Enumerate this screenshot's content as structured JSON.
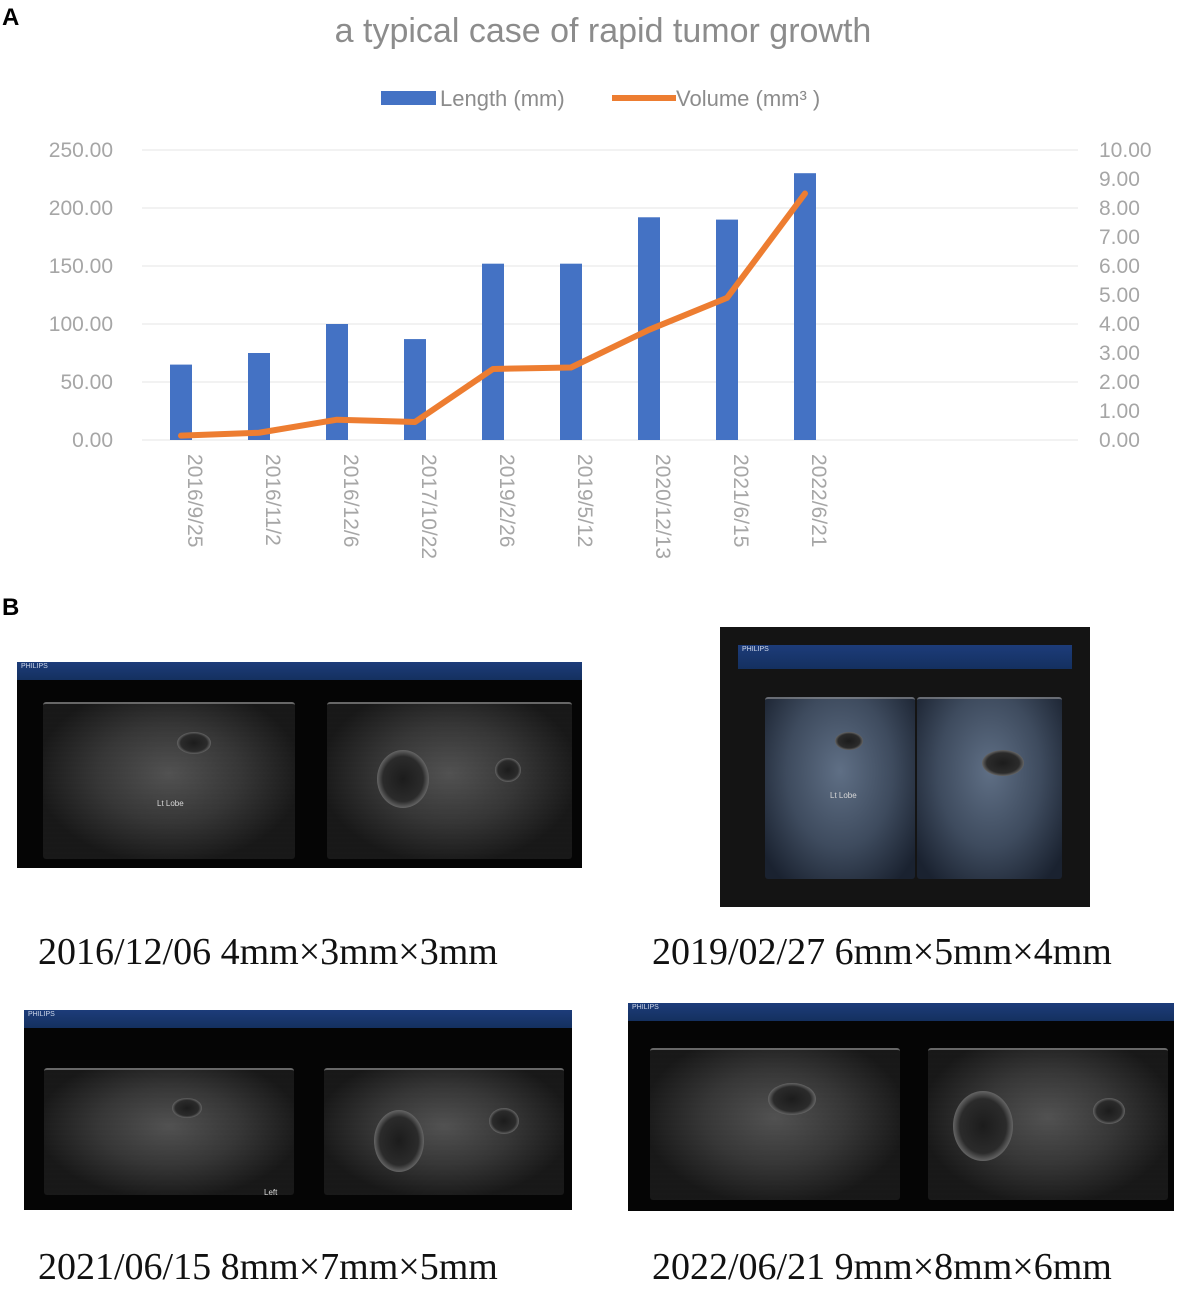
{
  "panels": {
    "a": "A",
    "b": "B"
  },
  "chart_data": {
    "type": "bar",
    "title": "a typical case of rapid tumor growth",
    "categories": [
      "2016/9/25",
      "2016/11/2",
      "2016/12/6",
      "2017/10/22",
      "2019/2/26",
      "2019/5/12",
      "2020/12/13",
      "2021/6/15",
      "2022/6/21"
    ],
    "series": [
      {
        "name": "Length (mm)",
        "type": "bar",
        "axis": "left",
        "color": "#4472c4",
        "values": [
          65,
          75,
          100,
          87,
          152,
          152,
          192,
          190,
          230
        ]
      },
      {
        "name": "Volume (mm³ )",
        "type": "line",
        "axis": "right",
        "color": "#ed7d31",
        "values": [
          0.15,
          0.25,
          0.7,
          0.62,
          2.45,
          2.5,
          3.8,
          4.9,
          8.5
        ]
      }
    ],
    "y_left": {
      "min": 0,
      "max": 250,
      "ticks": [
        "0.00",
        "50.00",
        "100.00",
        "150.00",
        "200.00",
        "250.00"
      ]
    },
    "y_right": {
      "min": 0,
      "max": 10,
      "ticks": [
        "0.00",
        "1.00",
        "2.00",
        "3.00",
        "4.00",
        "5.00",
        "6.00",
        "7.00",
        "8.00",
        "9.00",
        "10.00"
      ]
    },
    "grid": true,
    "legend_position": "top"
  },
  "ultrasounds": [
    {
      "id": "us1",
      "caption": "2016/12/06 4mm×3mm×3mm",
      "header": "PHILIPS",
      "label": "Lt Lobe"
    },
    {
      "id": "us2",
      "caption": "2019/02/27 6mm×5mm×4mm",
      "header": "PHILIPS",
      "label": "Lt Lobe"
    },
    {
      "id": "us3",
      "caption": "2021/06/15 8mm×7mm×5mm",
      "header": "PHILIPS",
      "label": "Left"
    },
    {
      "id": "us4",
      "caption": "2022/06/21 9mm×8mm×6mm",
      "header": "PHILIPS",
      "label": ""
    }
  ]
}
